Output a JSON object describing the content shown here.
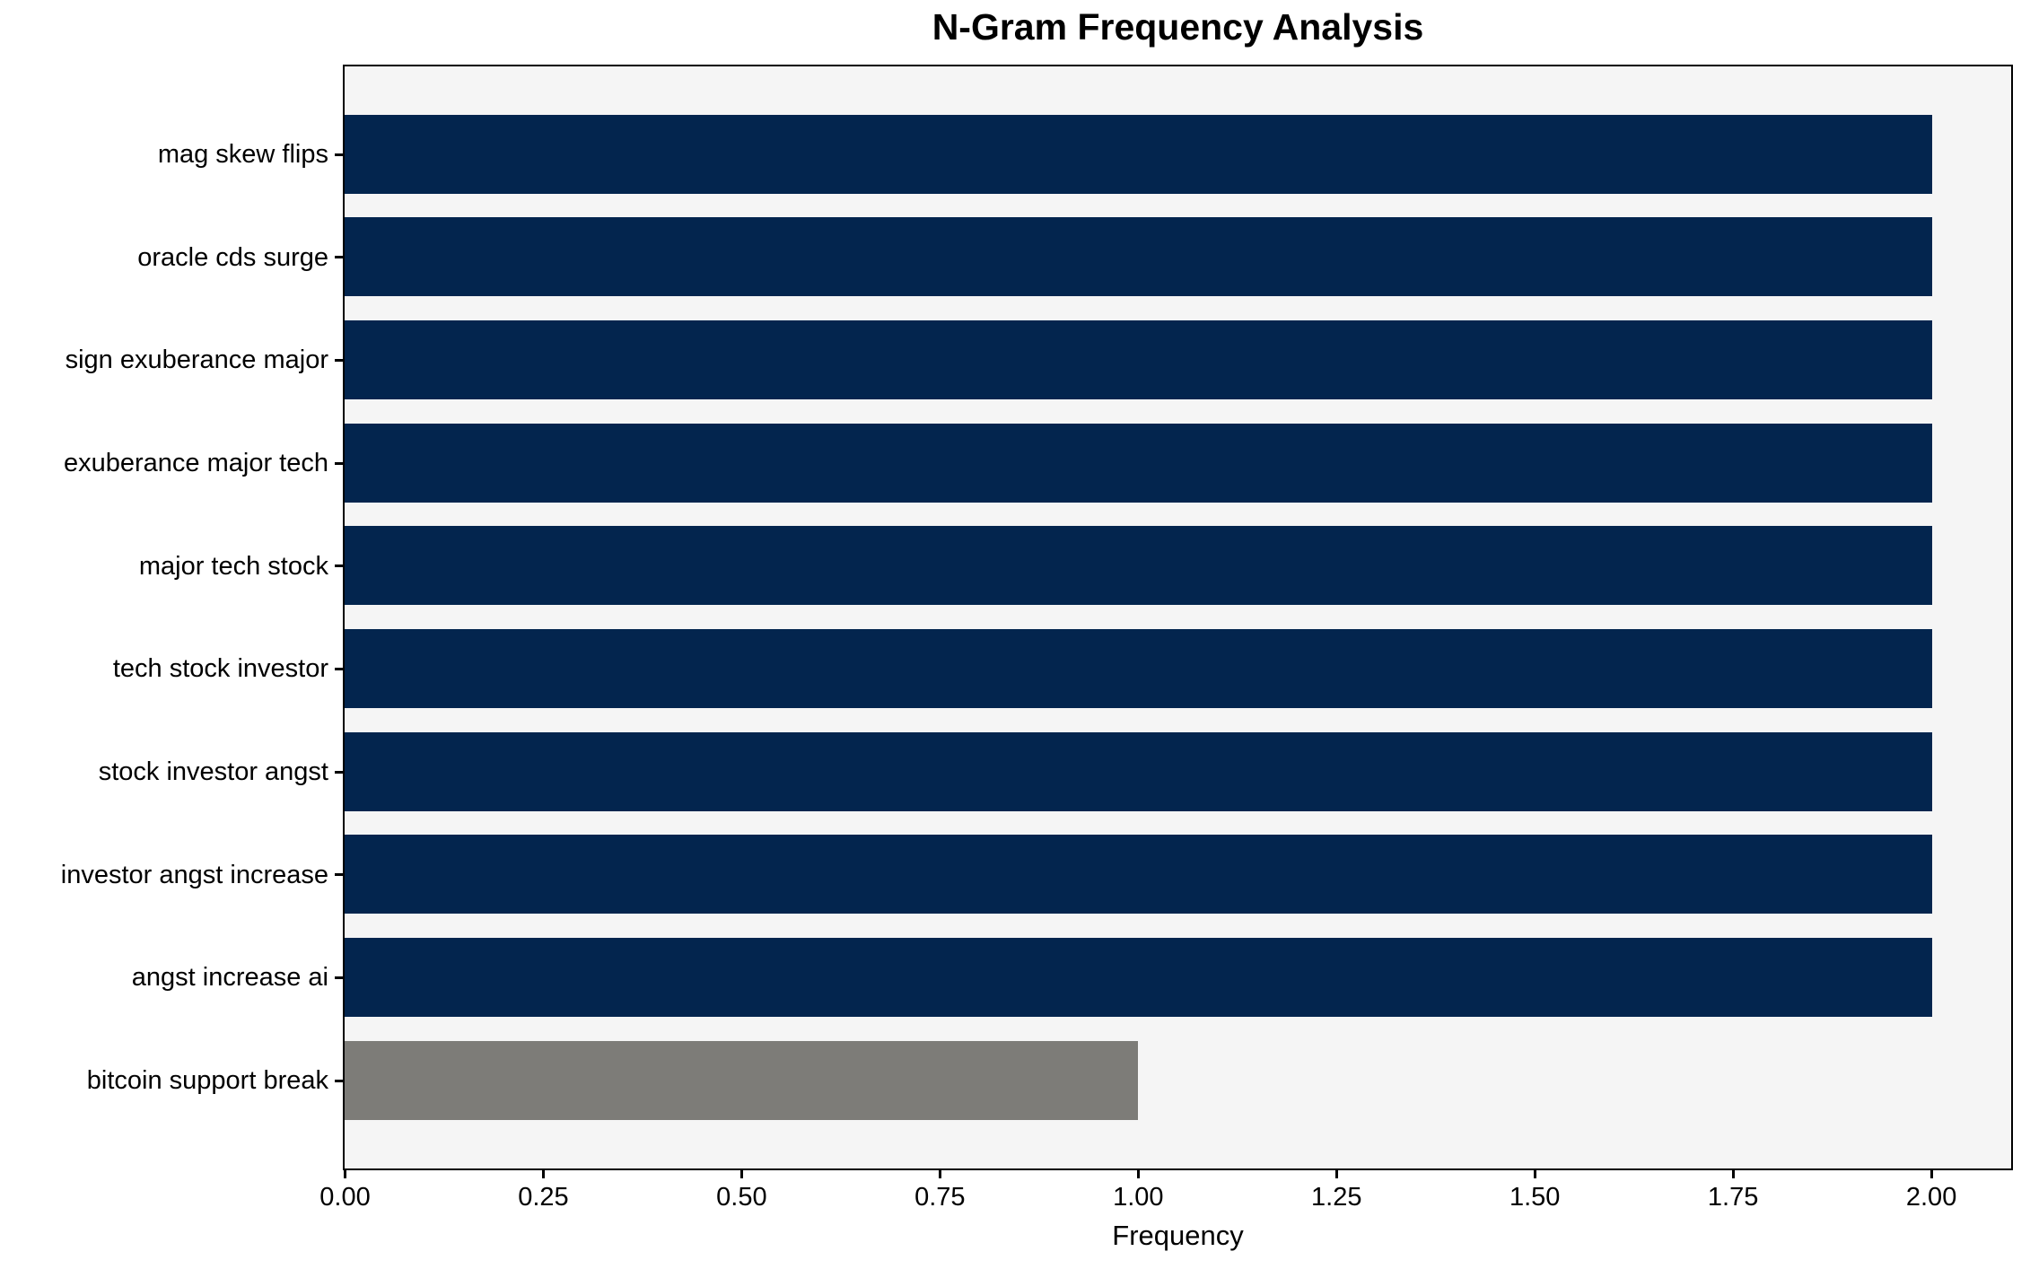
{
  "chart_data": {
    "type": "bar",
    "orientation": "horizontal",
    "title": "N-Gram Frequency Analysis",
    "xlabel": "Frequency",
    "ylabel": "",
    "categories": [
      "mag skew flips",
      "oracle cds surge",
      "sign exuberance major",
      "exuberance major tech",
      "major tech stock",
      "tech stock investor",
      "stock investor angst",
      "investor angst increase",
      "angst increase ai",
      "bitcoin support break"
    ],
    "values": [
      2,
      2,
      2,
      2,
      2,
      2,
      2,
      2,
      2,
      1
    ],
    "bar_colors": [
      "#03254e",
      "#03254e",
      "#03254e",
      "#03254e",
      "#03254e",
      "#03254e",
      "#03254e",
      "#03254e",
      "#03254e",
      "#7d7c78"
    ],
    "xlim": [
      0,
      2.1
    ],
    "x_ticks": [
      0,
      0.25,
      0.5,
      0.75,
      1.0,
      1.25,
      1.5,
      1.75,
      2.0
    ],
    "x_tick_labels": [
      "0.00",
      "0.25",
      "0.50",
      "0.75",
      "1.00",
      "1.25",
      "1.50",
      "1.75",
      "2.00"
    ],
    "grid": false,
    "legend": "none",
    "plot_background": "#f5f5f5",
    "figure_background": "#ffffff",
    "spine_color": "#000000"
  }
}
